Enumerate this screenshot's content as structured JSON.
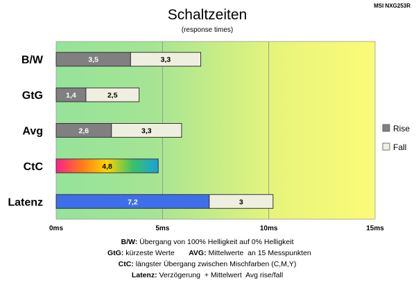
{
  "chart_data": {
    "type": "bar",
    "orientation": "horizontal",
    "stacked": true,
    "title": "Schaltzeiten",
    "subtitle": "(response times)",
    "device": "MSI NXG253R",
    "categories": [
      "B/W",
      "GtG",
      "Avg",
      "CtC",
      "Latenz"
    ],
    "series": [
      {
        "name": "Rise",
        "values": [
          3.5,
          1.4,
          2.6,
          4.8,
          7.2
        ],
        "labels": [
          "3,5",
          "1,4",
          "2,6",
          "4,8",
          "7,2"
        ]
      },
      {
        "name": "Fall",
        "values": [
          3.3,
          2.5,
          3.3,
          null,
          3
        ],
        "labels": [
          "3,3",
          "2,5",
          "3,3",
          "",
          "3"
        ]
      }
    ],
    "x_ticks": [
      "0ms",
      "5ms",
      "10ms",
      "15ms"
    ],
    "xlim": [
      0,
      15
    ],
    "grid": true,
    "legend": "right",
    "colors": {
      "rise": "#808080",
      "fall": "#efefe0",
      "latenz_rise": "#3f6fe8",
      "bg_green": "#95e39a",
      "bg_yellow": "#fbfb78",
      "ctc_gradient": [
        "#ff1f8e",
        "#ff7a1a",
        "#ffd400",
        "#3ac16a",
        "#1aa0d8"
      ]
    },
    "notes": [
      {
        "key": "B/W:",
        "text": " Übergang von 100% Helligkeit auf 0% Helligkeit"
      },
      {
        "key": "GtG:",
        "text": " kürzeste Werte       ",
        "key2": "AVG:",
        "text2": " Mittelwerte  an 15 Messpunkten"
      },
      {
        "key": "CtC:",
        "text": " längster Übergang zwischen Mischfarben (C,M,Y)"
      },
      {
        "key": "Latenz:",
        "text": " Verzögerung  + Mittelwert  Avg rise/fall"
      }
    ]
  }
}
